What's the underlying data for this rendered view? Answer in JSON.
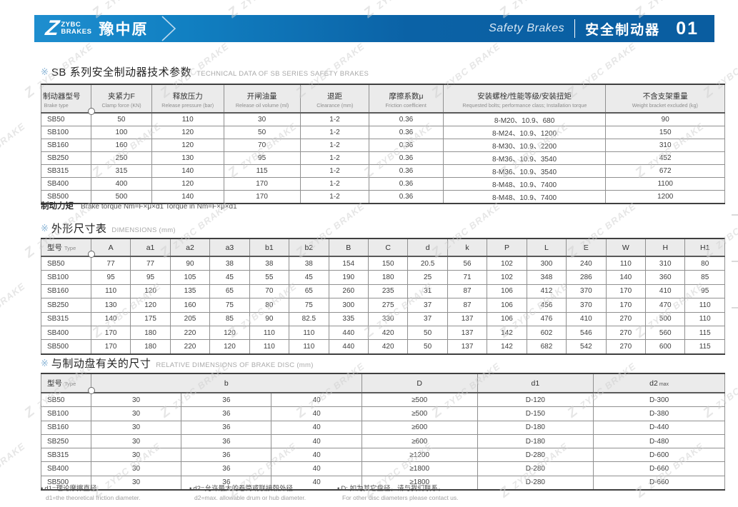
{
  "header": {
    "logo_z": "Z",
    "logo_line1": "ZYBC",
    "logo_line2": "BRAKES",
    "logo_cn": "豫中原",
    "subtitle_en": "Safety Brakes",
    "title_cn": "安全制动器",
    "page_no": "01",
    "bar_color_left": "#1e8ecf",
    "bar_color_right": "#0a5da0"
  },
  "watermark": {
    "logo": "Z",
    "text": "ZYBC BRAKE"
  },
  "section1": {
    "mark": "※",
    "cn": "SB 系列安全制动器技术参数",
    "en": "TECHNICAL DATA OF SB SERIES SAFETY BRAKES"
  },
  "section2": {
    "mark": "※",
    "cn": "外形尺寸表",
    "en": "DIMENSIONS (mm)"
  },
  "section3": {
    "mark": "※",
    "cn": "与制动盘有关的尺寸",
    "en": "RELATIVE DIMENSIONS OF BRAKE DISC (mm)"
  },
  "table1": {
    "columns": [
      {
        "cn": "制动器型号",
        "en": "Brake type"
      },
      {
        "cn": "夹紧力F",
        "en": "Clamp force (KN)"
      },
      {
        "cn": "释放压力",
        "en": "Release pressure (bar)"
      },
      {
        "cn": "开闸油量",
        "en": "Release oil volume (ml)"
      },
      {
        "cn": "退距",
        "en": "Clearance (mm)"
      },
      {
        "cn": "摩擦系数μ",
        "en": "Friction coefficient"
      },
      {
        "cn": "安装螺栓/性能等级/安装扭矩",
        "en": "Requested bolts;  performance class;  Installation torque"
      },
      {
        "cn": "不含支架重量",
        "en": "Weight bracket excluded (kg)"
      }
    ],
    "rows": [
      [
        "SB50",
        "50",
        "110",
        "30",
        "1-2",
        "0.36",
        "8-M20、10.9、680",
        "90"
      ],
      [
        "SB100",
        "100",
        "120",
        "50",
        "1-2",
        "0.36",
        "8-M24、10.9、1200",
        "150"
      ],
      [
        "SB160",
        "160",
        "120",
        "70",
        "1-2",
        "0.36",
        "8-M30、10.9、2200",
        "310"
      ],
      [
        "SB250",
        "250",
        "130",
        "95",
        "1-2",
        "0.36",
        "8-M36、10.9、3540",
        "452"
      ],
      [
        "SB315",
        "315",
        "140",
        "115",
        "1-2",
        "0.36",
        "8-M36、10.9、3540",
        "672"
      ],
      [
        "SB400",
        "400",
        "120",
        "170",
        "1-2",
        "0.36",
        "8-M48、10.9、7400",
        "1100"
      ],
      [
        "SB500",
        "500",
        "140",
        "170",
        "1-2",
        "0.36",
        "8-M48、10.9、7400",
        "1200"
      ]
    ]
  },
  "table1_note": {
    "cn": "制动力矩",
    "en": "Brake torque  Nm=F×μ×d1  Torque in Nm=F×μ×d1"
  },
  "table2": {
    "type_cn": "型号",
    "type_en": "Type",
    "columns": [
      "A",
      "a1",
      "a2",
      "a3",
      "b1",
      "b2",
      "B",
      "C",
      "d",
      "k",
      "P",
      "L",
      "E",
      "W",
      "H",
      "H1"
    ],
    "rows": [
      [
        "SB50",
        "77",
        "77",
        "90",
        "38",
        "38",
        "38",
        "154",
        "150",
        "20.5",
        "56",
        "102",
        "300",
        "240",
        "110",
        "310",
        "80"
      ],
      [
        "SB100",
        "95",
        "95",
        "105",
        "45",
        "55",
        "45",
        "190",
        "180",
        "25",
        "71",
        "102",
        "348",
        "286",
        "140",
        "360",
        "85"
      ],
      [
        "SB160",
        "110",
        "120",
        "135",
        "65",
        "70",
        "65",
        "260",
        "235",
        "31",
        "87",
        "106",
        "412",
        "370",
        "170",
        "410",
        "95"
      ],
      [
        "SB250",
        "130",
        "120",
        "160",
        "75",
        "80",
        "75",
        "300",
        "275",
        "37",
        "87",
        "106",
        "456",
        "370",
        "170",
        "470",
        "110"
      ],
      [
        "SB315",
        "140",
        "175",
        "205",
        "85",
        "90",
        "82.5",
        "335",
        "330",
        "37",
        "137",
        "106",
        "476",
        "410",
        "270",
        "500",
        "110"
      ],
      [
        "SB400",
        "170",
        "180",
        "220",
        "120",
        "110",
        "110",
        "440",
        "420",
        "50",
        "137",
        "142",
        "602",
        "546",
        "270",
        "560",
        "115"
      ],
      [
        "SB500",
        "170",
        "180",
        "220",
        "120",
        "110",
        "110",
        "440",
        "420",
        "50",
        "137",
        "142",
        "682",
        "542",
        "270",
        "600",
        "115"
      ]
    ]
  },
  "table3": {
    "type_cn": "型号",
    "type_en": "Type",
    "b_label": "b",
    "d_label": "D",
    "d1_label": "d1",
    "d2_label": "d2",
    "d2_sub": "max",
    "rows": [
      [
        "SB50",
        "30",
        "36",
        "40",
        "≥500",
        "D-120",
        "D-300"
      ],
      [
        "SB100",
        "30",
        "36",
        "40",
        "≥500",
        "D-150",
        "D-380"
      ],
      [
        "SB160",
        "30",
        "36",
        "40",
        "≥600",
        "D-180",
        "D-440"
      ],
      [
        "SB250",
        "30",
        "36",
        "40",
        "≥600",
        "D-180",
        "D-480"
      ],
      [
        "SB315",
        "30",
        "36",
        "40",
        "≥1200",
        "D-280",
        "D-600"
      ],
      [
        "SB400",
        "30",
        "36",
        "40",
        "≥1800",
        "D-280",
        "D-660"
      ],
      [
        "SB500",
        "30",
        "36",
        "40",
        "≥1800",
        "D-280",
        "D-660"
      ]
    ]
  },
  "footnotes": [
    {
      "bullet": "•",
      "cn": "d1=理论摩擦直径",
      "en": "d1=the theoretical friction diameter."
    },
    {
      "bullet": "•",
      "cn": "d2=允许最大的卷筒或联接毂外径",
      "en": "d2=max. allowable drum or hub diameter."
    },
    {
      "bullet": "•",
      "cn": "D: 如为其它盘径，请与我们联系。",
      "en": "For other disc diameters please contact us."
    }
  ]
}
